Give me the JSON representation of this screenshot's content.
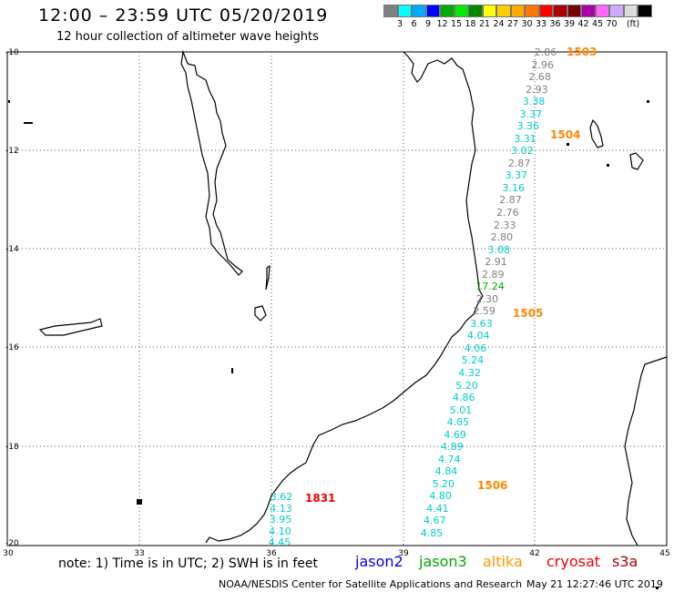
{
  "header": {
    "title": "12:00 – 23:59 UTC 05/20/2019",
    "subtitle": "12 hour collection of altimeter wave heights"
  },
  "legend": {
    "colors": [
      "#808080",
      "#00ffff",
      "#00aaff",
      "#0000ff",
      "#00aa00",
      "#00ee00",
      "#008800",
      "#ffff00",
      "#ffcc00",
      "#ffaa00",
      "#ff7700",
      "#ff0000",
      "#aa0000",
      "#770000",
      "#aa00aa",
      "#ff66ff",
      "#ccaaff",
      "#dddddd",
      "#000000"
    ],
    "labels": [
      "3",
      "6",
      "9",
      "12",
      "15",
      "18",
      "21",
      "24",
      "27",
      "30",
      "33",
      "36",
      "39",
      "42",
      "45",
      "70"
    ],
    "unit": "(ft)"
  },
  "axes": {
    "lat_labels": [
      "-10",
      "-12",
      "-14",
      "-16",
      "-18",
      "-20"
    ],
    "lon_labels": [
      "30",
      "33",
      "36",
      "39",
      "42",
      "45"
    ]
  },
  "passes": [
    {
      "id": "1503",
      "color": "#ff8800"
    },
    {
      "id": "1504",
      "color": "#ff8800"
    },
    {
      "id": "1505",
      "color": "#ff8800"
    },
    {
      "id": "1506",
      "color": "#ff8800"
    },
    {
      "id": "1831",
      "color": "#ee0000"
    }
  ],
  "wave_heights": [
    {
      "v": "2.86",
      "c": "#808080"
    },
    {
      "v": "2.96",
      "c": "#808080"
    },
    {
      "v": "2.68",
      "c": "#808080"
    },
    {
      "v": "2.93",
      "c": "#808080"
    },
    {
      "v": "3.38",
      "c": "#00cccc"
    },
    {
      "v": "3.37",
      "c": "#00cccc"
    },
    {
      "v": "3.36",
      "c": "#00cccc"
    },
    {
      "v": "3.31",
      "c": "#00cccc"
    },
    {
      "v": "3.02",
      "c": "#00cccc"
    },
    {
      "v": "2.87",
      "c": "#808080"
    },
    {
      "v": "3.37",
      "c": "#00cccc"
    },
    {
      "v": "3.16",
      "c": "#00cccc"
    },
    {
      "v": "2.87",
      "c": "#808080"
    },
    {
      "v": "2.76",
      "c": "#808080"
    },
    {
      "v": "2.33",
      "c": "#808080"
    },
    {
      "v": "2.80",
      "c": "#808080"
    },
    {
      "v": "3.08",
      "c": "#00cccc"
    },
    {
      "v": "2.91",
      "c": "#808080"
    },
    {
      "v": "2.89",
      "c": "#808080"
    },
    {
      "v": "17.24",
      "c": "#00aa00"
    },
    {
      "v": "2.30",
      "c": "#808080"
    },
    {
      "v": "2.59",
      "c": "#808080"
    },
    {
      "v": "3.63",
      "c": "#00cccc"
    },
    {
      "v": "4.04",
      "c": "#00cccc"
    },
    {
      "v": "4.06",
      "c": "#00cccc"
    },
    {
      "v": "5.24",
      "c": "#00cccc"
    },
    {
      "v": "4.32",
      "c": "#00cccc"
    },
    {
      "v": "5.20",
      "c": "#00cccc"
    },
    {
      "v": "4.86",
      "c": "#00cccc"
    },
    {
      "v": "5.01",
      "c": "#00cccc"
    },
    {
      "v": "4.85",
      "c": "#00cccc"
    },
    {
      "v": "4.69",
      "c": "#00cccc"
    },
    {
      "v": "4.89",
      "c": "#00cccc"
    },
    {
      "v": "4.74",
      "c": "#00cccc"
    },
    {
      "v": "4.84",
      "c": "#00cccc"
    },
    {
      "v": "5.20",
      "c": "#00cccc"
    },
    {
      "v": "4.80",
      "c": "#00cccc"
    },
    {
      "v": "4.41",
      "c": "#00cccc"
    },
    {
      "v": "4.67",
      "c": "#00cccc"
    },
    {
      "v": "4.85",
      "c": "#00cccc"
    },
    {
      "v": "3.62",
      "c": "#00cccc"
    },
    {
      "v": "4.13",
      "c": "#00cccc"
    },
    {
      "v": "3.95",
      "c": "#00cccc"
    },
    {
      "v": "4.10",
      "c": "#00cccc"
    },
    {
      "v": "4.45",
      "c": "#00cccc"
    }
  ],
  "footer": {
    "note": "note: 1) Time is in UTC; 2) SWH is in feet",
    "satellites": [
      {
        "name": "jason2",
        "color": "#0000ee"
      },
      {
        "name": "jason3",
        "color": "#00aa00"
      },
      {
        "name": "altika",
        "color": "#ff9900"
      },
      {
        "name": "cryosat",
        "color": "#ee0000"
      },
      {
        "name": "s3a",
        "color": "#aa0000"
      }
    ],
    "credit": "NOAA/NESDIS Center for Satellite Applications and Research",
    "timestamp": "May 21 12:27:46 UTC 2019"
  }
}
